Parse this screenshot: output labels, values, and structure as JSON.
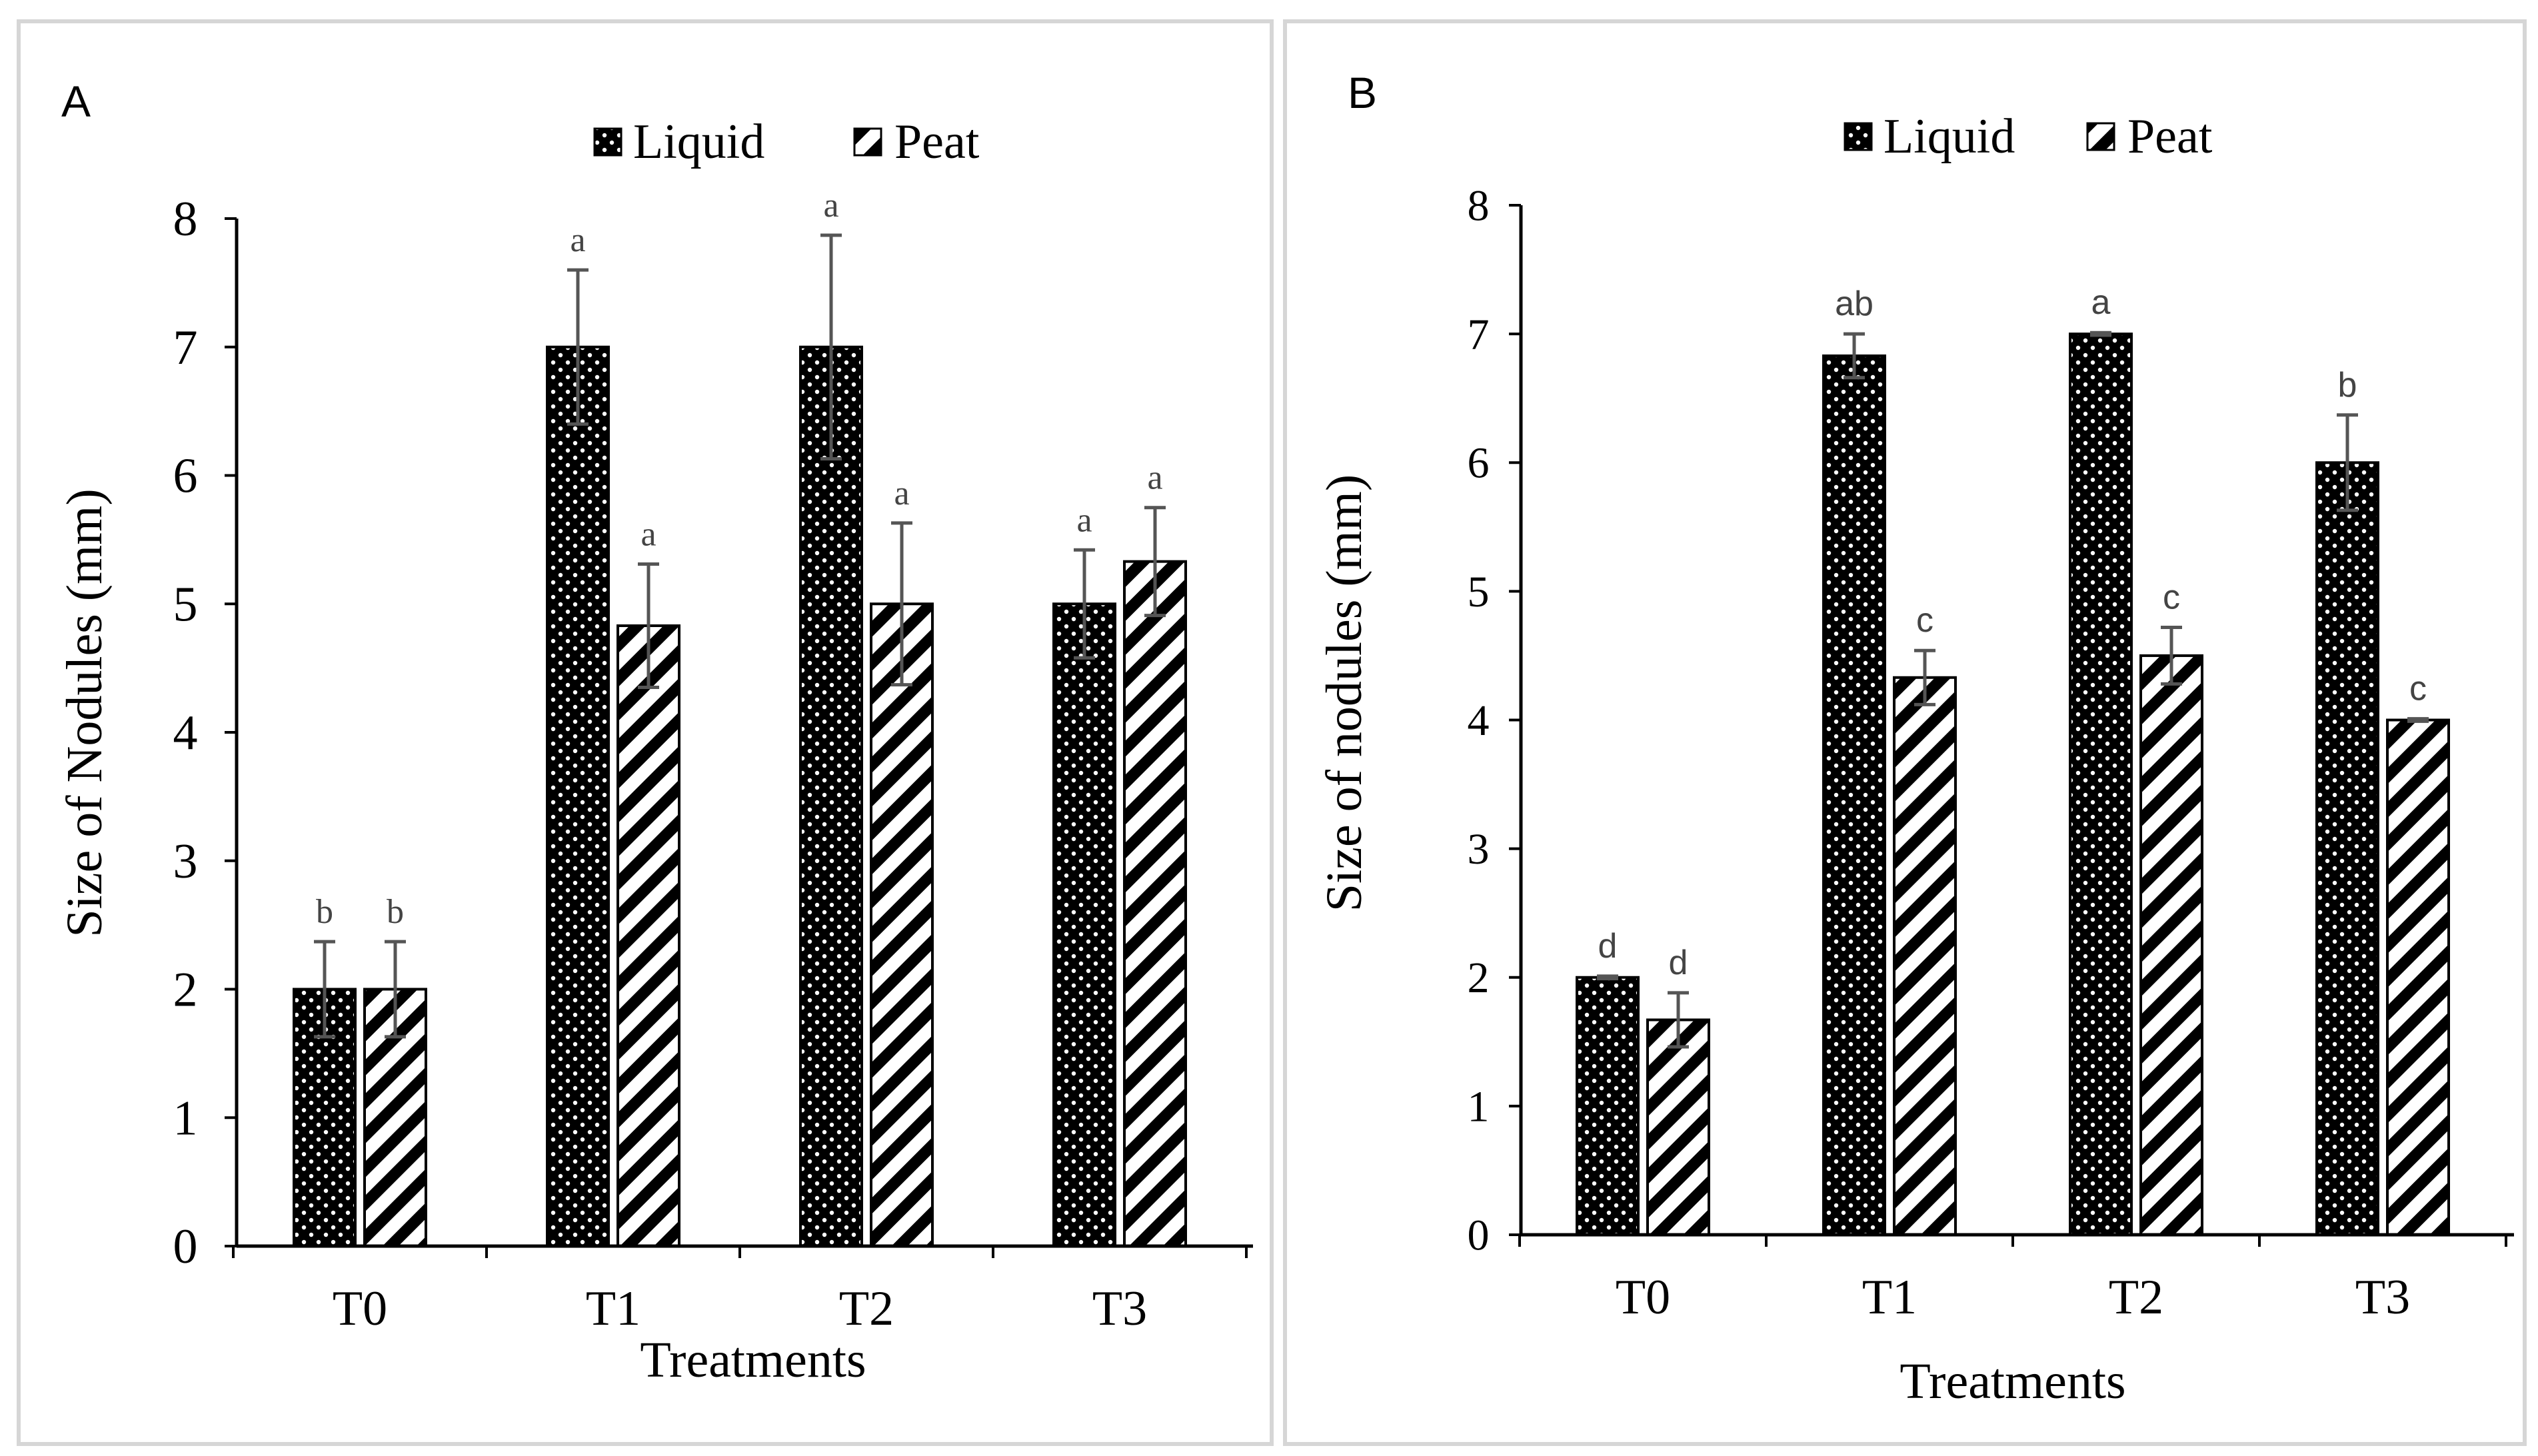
{
  "chart_data": [
    {
      "panel_label": "A",
      "type": "bar",
      "categories": [
        "T0",
        "T1",
        "T2",
        "T3"
      ],
      "series": [
        {
          "name": "Liquid",
          "values": [
            2,
            7,
            7,
            5
          ],
          "errors": [
            0.37,
            0.6,
            0.87,
            0.42
          ],
          "letters": [
            "b",
            "a",
            "a",
            "a"
          ]
        },
        {
          "name": "Peat",
          "values": [
            2,
            4.83,
            5,
            5.33
          ],
          "errors": [
            0.37,
            0.48,
            0.63,
            0.42
          ],
          "letters": [
            "b",
            "a",
            "a",
            "a"
          ]
        }
      ],
      "xlabel": "Treatments",
      "ylabel": "Size of  Nodules (mm)",
      "ylim": [
        0,
        8
      ],
      "yticks": [
        "0",
        "1",
        "2",
        "3",
        "4",
        "5",
        "6",
        "7",
        "8"
      ],
      "legend_position": "top-center",
      "grid": false
    },
    {
      "panel_label": "B",
      "type": "bar",
      "categories": [
        "T0",
        "T1",
        "T2",
        "T3"
      ],
      "series": [
        {
          "name": "Liquid",
          "values": [
            2,
            6.83,
            7,
            6
          ],
          "errors": [
            0.01,
            0.17,
            0.01,
            0.37
          ],
          "letters": [
            "d",
            "ab",
            "a",
            "b"
          ]
        },
        {
          "name": "Peat",
          "values": [
            1.67,
            4.33,
            4.5,
            4
          ],
          "errors": [
            0.21,
            0.21,
            0.22,
            0.01
          ],
          "letters": [
            "d",
            "c",
            "c",
            "c"
          ]
        }
      ],
      "xlabel": "Treatments",
      "ylabel": "Size of nodules (mm)",
      "ylim": [
        0,
        8
      ],
      "yticks": [
        "0",
        "1",
        "2",
        "3",
        "4",
        "5",
        "6",
        "7",
        "8"
      ],
      "legend_position": "top-center",
      "grid": false
    }
  ],
  "colors": {
    "bar_fill": "#000000",
    "pattern_mark": "#ffffff",
    "error_bar": "#555555",
    "letter": "#444444",
    "axis": "#000000",
    "panel_border": "#d6d6d6"
  }
}
